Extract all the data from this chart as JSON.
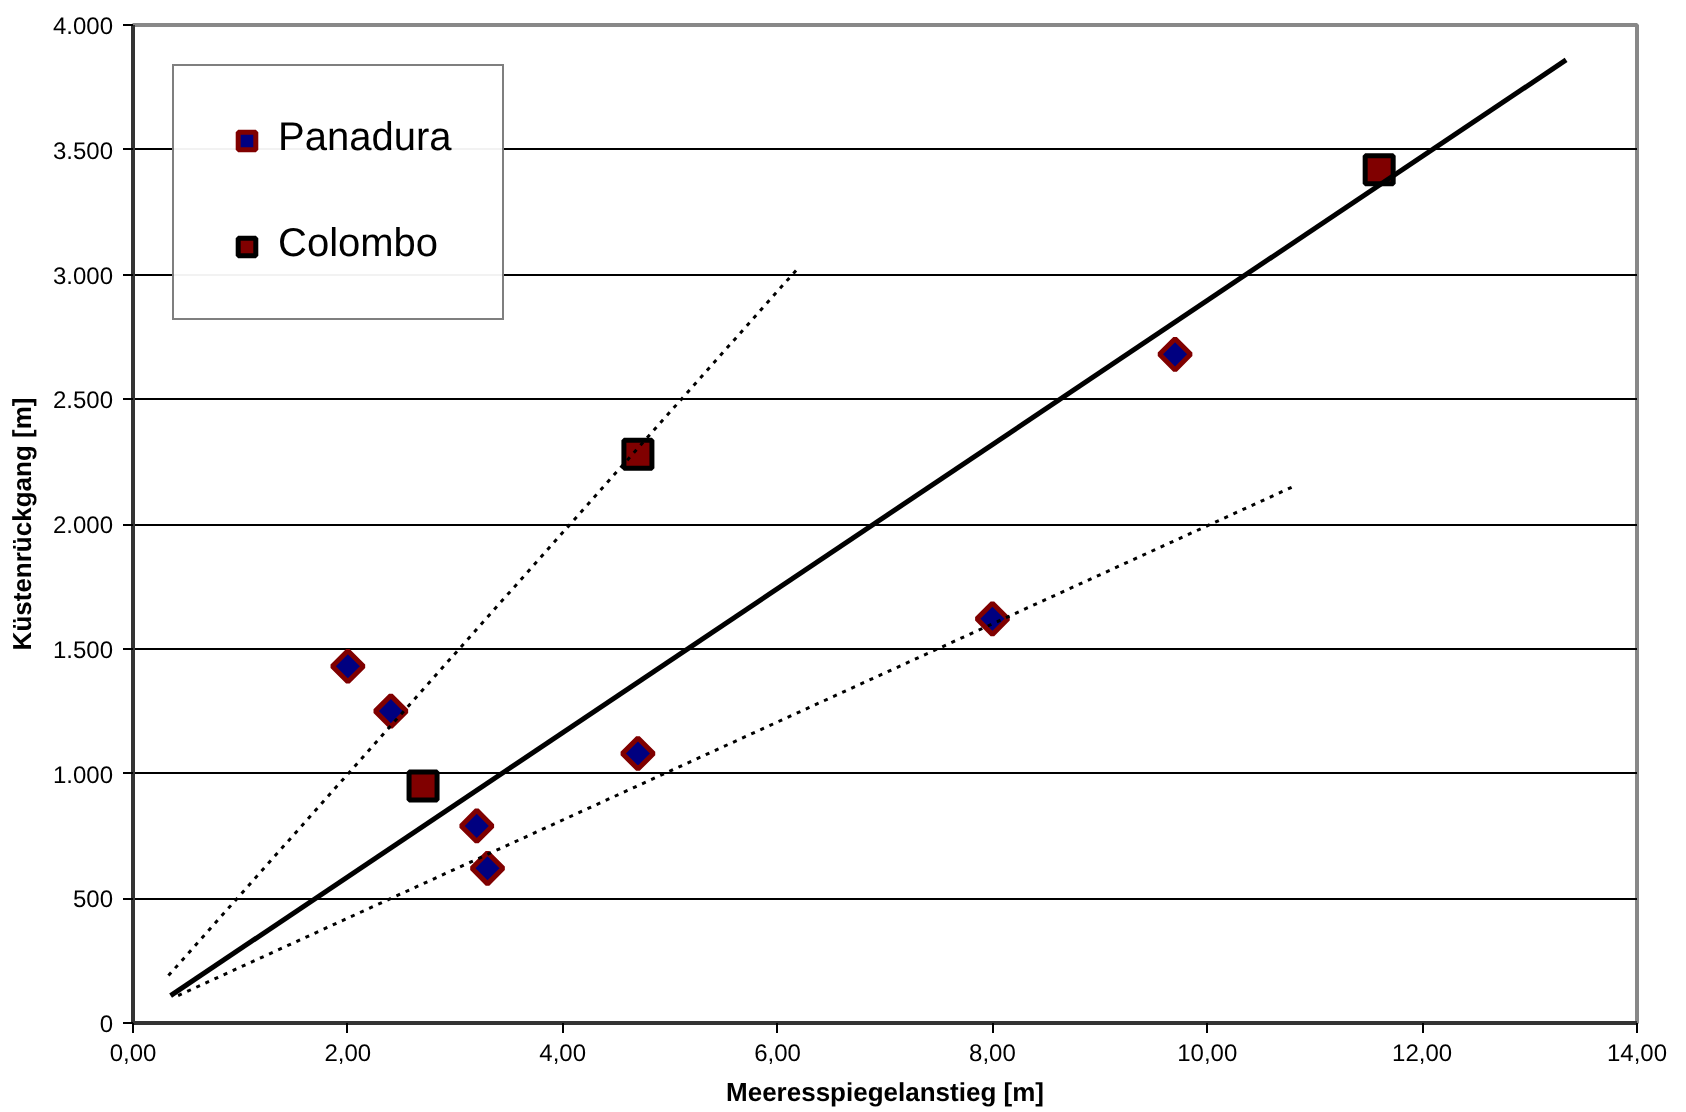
{
  "chart_data": {
    "type": "scatter",
    "xlabel": "Meeresspiegelanstieg [m]",
    "ylabel": "Küstenrückgang [m]",
    "xlim": [
      0,
      14
    ],
    "ylim": [
      0,
      4000
    ],
    "xticks": [
      {
        "value": 0,
        "label": "0,00"
      },
      {
        "value": 2,
        "label": "2,00"
      },
      {
        "value": 4,
        "label": "4,00"
      },
      {
        "value": 6,
        "label": "6,00"
      },
      {
        "value": 8,
        "label": "8,00"
      },
      {
        "value": 10,
        "label": "10,00"
      },
      {
        "value": 12,
        "label": "12,00"
      },
      {
        "value": 14,
        "label": "14,00"
      }
    ],
    "yticks": [
      0,
      500,
      {
        "value": 1000,
        "label": "1.000"
      },
      {
        "value": 1500,
        "label": "1.500"
      },
      {
        "value": 2000,
        "label": "2.000"
      },
      {
        "value": 2500,
        "label": "2.500"
      },
      {
        "value": 3000,
        "label": "3.000"
      },
      {
        "value": 3500,
        "label": "3.500"
      },
      {
        "value": 4000,
        "label": "4.000"
      }
    ],
    "grid": "y",
    "legend": "top left",
    "series": [
      {
        "name": "Panadura",
        "marker": "diamond",
        "color": "#000080",
        "x": [
          2.0,
          2.4,
          3.2,
          3.3,
          4.7,
          8.0,
          9.7
        ],
        "values": [
          1430,
          1250,
          790,
          620,
          1080,
          1620,
          2680
        ]
      },
      {
        "name": "Colombo",
        "marker": "square",
        "color": "#800000",
        "x": [
          2.7,
          4.7,
          11.6
        ],
        "values": [
          950,
          2280,
          3420
        ]
      },
      {
        "type": "line",
        "line_style": "solid",
        "color": "#000000",
        "x": [
          0.35,
          13.34
        ],
        "values": [
          110,
          3860
        ]
      },
      {
        "type": "line",
        "line_style": "dotted",
        "color": "#000000",
        "x": [
          0.33,
          6.2
        ],
        "values": [
          190,
          3030
        ]
      },
      {
        "type": "line",
        "line_style": "dotted",
        "color": "#000000",
        "x": [
          0.42,
          10.8
        ],
        "values": [
          110,
          2150
        ]
      }
    ]
  }
}
